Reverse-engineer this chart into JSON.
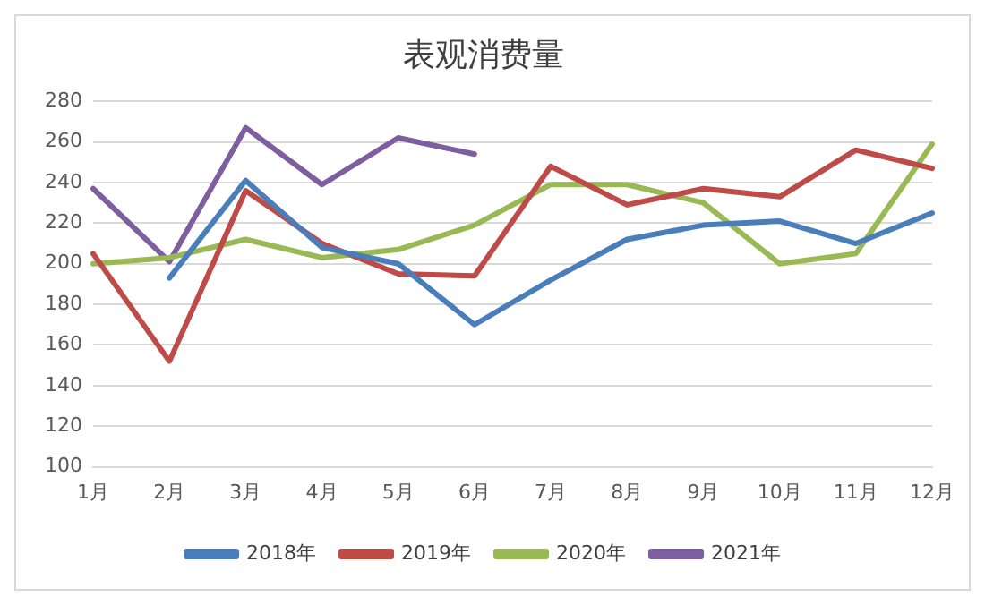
{
  "chart_data": {
    "type": "line",
    "title": "表观消费量",
    "categories": [
      "1月",
      "2月",
      "3月",
      "4月",
      "5月",
      "6月",
      "7月",
      "8月",
      "9月",
      "10月",
      "11月",
      "12月"
    ],
    "series": [
      {
        "name": "2018年",
        "color": "#4a7ebb",
        "values": [
          null,
          193,
          241,
          208,
          200,
          170,
          192,
          212,
          219,
          221,
          210,
          225
        ]
      },
      {
        "name": "2019年",
        "color": "#be4b48",
        "values": [
          205,
          152,
          236,
          210,
          195,
          194,
          248,
          229,
          237,
          233,
          256,
          247
        ]
      },
      {
        "name": "2020年",
        "color": "#98b954",
        "values": [
          200,
          203,
          212,
          203,
          207,
          219,
          239,
          239,
          230,
          200,
          205,
          259
        ]
      },
      {
        "name": "2021年",
        "color": "#7d5fa0",
        "values": [
          237,
          201,
          267,
          239,
          262,
          254,
          null,
          null,
          null,
          null,
          null,
          null
        ]
      }
    ],
    "ylim": [
      100,
      280
    ],
    "yticks": [
      100,
      120,
      140,
      160,
      180,
      200,
      220,
      240,
      260,
      280
    ],
    "grid": "y",
    "legend": "bottom",
    "marker": "none",
    "line_style": "solid"
  }
}
